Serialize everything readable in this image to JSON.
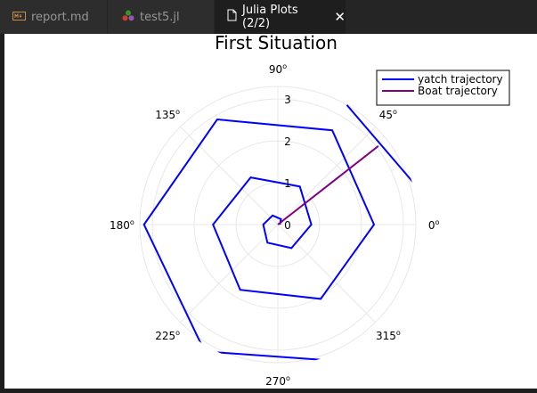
{
  "tabs": [
    {
      "label": "report.md",
      "icon": "markdown-file-icon",
      "active": false
    },
    {
      "label": "test5.jl",
      "icon": "julia-logo-icon",
      "active": false
    },
    {
      "label": "Julia Plots (2/2)",
      "icon": "document-icon",
      "active": true
    }
  ],
  "close_glyph": "✕",
  "colors": {
    "yacht": "#0000ff",
    "boat": "#800080",
    "grid": "#e8e8e8"
  },
  "chart_data": {
    "type": "line",
    "projection": "polar",
    "title": "First Situation",
    "angle_ticks_deg": [
      0,
      45,
      90,
      135,
      180,
      225,
      270,
      315
    ],
    "angle_tick_labels": [
      "0",
      "45",
      "90",
      "135",
      "180",
      "225",
      "270",
      "315"
    ],
    "degree_symbol": "o",
    "radial_ticks": [
      0,
      1,
      2,
      3
    ],
    "radial_tick_labels": [
      "0",
      "1",
      "2",
      "3"
    ],
    "rlim": [
      0,
      3.3
    ],
    "grid": true,
    "legend_position": "top-right",
    "series": [
      {
        "name": "yatch trajectory",
        "theta_deg": [
          0,
          60,
          120,
          180,
          240,
          300,
          360,
          420,
          480,
          540,
          600,
          660,
          720,
          780,
          840,
          900,
          960,
          1020,
          1080,
          1140
        ],
        "r": [
          0.05,
          0.15,
          0.25,
          0.35,
          0.5,
          0.65,
          0.8,
          1.05,
          1.3,
          1.55,
          1.8,
          2.05,
          2.3,
          2.6,
          2.9,
          3.2,
          3.5,
          3.8,
          4.1,
          3.3
        ]
      },
      {
        "name": "Boat trajectory",
        "theta_deg": [
          38,
          38
        ],
        "r": [
          0,
          3.05
        ]
      }
    ]
  }
}
